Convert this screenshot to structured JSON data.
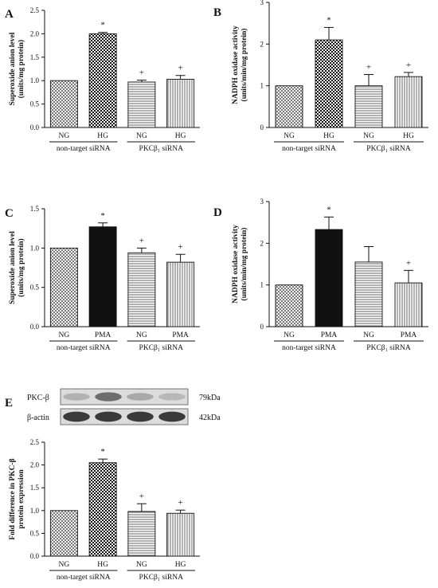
{
  "colors": {
    "ink": "#111111",
    "background": "#ffffff"
  },
  "chart_data": [
    {
      "panel": "A",
      "type": "bar",
      "ylabel": "Superoxide anion level (units/mg protein)",
      "ylim": [
        0,
        2.5
      ],
      "yticks": [
        "0.0",
        "0.5",
        "1.0",
        "1.5",
        "2.0",
        "2.5"
      ],
      "categories": [
        "NG",
        "HG",
        "NG",
        "HG"
      ],
      "groups": [
        {
          "label": "non-target siRNA",
          "from": 0,
          "to": 1
        },
        {
          "label": "PKCβ₁ siRNA",
          "from": 2,
          "to": 3
        }
      ],
      "values": [
        1.0,
        2.0,
        0.97,
        1.03
      ],
      "errors": [
        0,
        0.03,
        0.04,
        0.08
      ],
      "markers": [
        "",
        "*",
        "+",
        "+"
      ],
      "fills": [
        "crosshatch",
        "checker",
        "hlines",
        "vlines"
      ]
    },
    {
      "panel": "B",
      "type": "bar",
      "ylabel": "NADPH oxidase activity (units/min/mg protein)",
      "ylim": [
        0,
        3
      ],
      "yticks": [
        "0",
        "1",
        "2",
        "3"
      ],
      "categories": [
        "NG",
        "HG",
        "NG",
        "HG"
      ],
      "groups": [
        {
          "label": "non-target siRNA",
          "from": 0,
          "to": 1
        },
        {
          "label": "PKCβ₁ siRNA",
          "from": 2,
          "to": 3
        }
      ],
      "values": [
        1.0,
        2.1,
        1.0,
        1.22
      ],
      "errors": [
        0,
        0.3,
        0.27,
        0.1
      ],
      "markers": [
        "",
        "*",
        "+",
        "+"
      ],
      "fills": [
        "crosshatch",
        "checker",
        "hlines",
        "vlines"
      ]
    },
    {
      "panel": "C",
      "type": "bar",
      "ylabel": "Superoxide anion level (units/mg protein)",
      "ylim": [
        0,
        1.5
      ],
      "yticks": [
        "0.0",
        "0.5",
        "1.0",
        "1.5"
      ],
      "categories": [
        "NG",
        "PMA",
        "NG",
        "PMA"
      ],
      "groups": [
        {
          "label": "non-target siRNA",
          "from": 0,
          "to": 1
        },
        {
          "label": "PKCβ₁ siRNA",
          "from": 2,
          "to": 3
        }
      ],
      "values": [
        1.0,
        1.27,
        0.94,
        0.82
      ],
      "errors": [
        0,
        0.05,
        0.06,
        0.1
      ],
      "markers": [
        "",
        "*",
        "+",
        "+"
      ],
      "fills": [
        "crosshatch",
        "black",
        "hlines",
        "vlines"
      ]
    },
    {
      "panel": "D",
      "type": "bar",
      "ylabel": "NADPH oxidase activity (units/min/mg protein)",
      "ylim": [
        0,
        3
      ],
      "yticks": [
        "0",
        "1",
        "2",
        "3"
      ],
      "categories": [
        "NG",
        "PMA",
        "NG",
        "PMA"
      ],
      "groups": [
        {
          "label": "non-target siRNA",
          "from": 0,
          "to": 1
        },
        {
          "label": "PKCβ₁ siRNA",
          "from": 2,
          "to": 3
        }
      ],
      "values": [
        1.0,
        2.33,
        1.55,
        1.05
      ],
      "errors": [
        0,
        0.3,
        0.37,
        0.3
      ],
      "markers": [
        "",
        "*",
        "",
        "+"
      ],
      "fills": [
        "crosshatch",
        "black",
        "hlines",
        "vlines"
      ]
    },
    {
      "panel": "E",
      "type": "bar",
      "ylabel": "Fold difference in PKC-β protein expression",
      "ylim": [
        0,
        2.5
      ],
      "yticks": [
        "0.0",
        "0.5",
        "1.0",
        "1.5",
        "2.0",
        "2.5"
      ],
      "categories": [
        "NG",
        "HG",
        "NG",
        "HG"
      ],
      "groups": [
        {
          "label": "non-target siRNA",
          "from": 0,
          "to": 1
        },
        {
          "label": "PKCβ₁ siRNA",
          "from": 2,
          "to": 3
        }
      ],
      "values": [
        1.0,
        2.05,
        0.98,
        0.94
      ],
      "errors": [
        0,
        0.08,
        0.17,
        0.07
      ],
      "markers": [
        "",
        "*",
        "+",
        "+"
      ],
      "fills": [
        "crosshatch",
        "checker",
        "hlines",
        "vlines"
      ]
    }
  ],
  "blot": {
    "rows": [
      {
        "label": "PKC-β",
        "size": "79kDa",
        "intensity": [
          0.25,
          0.65,
          0.3,
          0.22
        ]
      },
      {
        "label": "β-actin",
        "size": "42kDa",
        "intensity": [
          0.95,
          0.95,
          0.95,
          0.95
        ]
      }
    ]
  }
}
